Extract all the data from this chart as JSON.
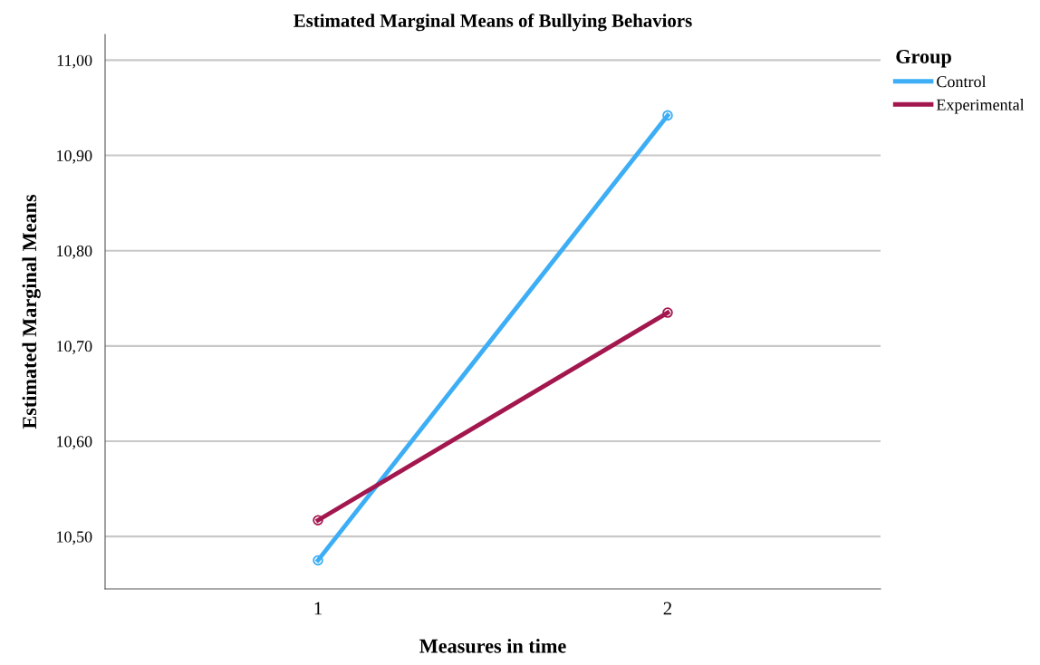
{
  "chart_data": {
    "type": "line",
    "title": "Estimated Marginal Means of Bullying Behaviors",
    "xlabel": "Measures in time",
    "ylabel": "Estimated Marginal Means",
    "legend_title": "Group",
    "categories": [
      "1",
      "2"
    ],
    "series": [
      {
        "name": "Control",
        "color": "#3daef5",
        "values": [
          10.475,
          10.942
        ]
      },
      {
        "name": "Experimental",
        "color": "#a3174f",
        "values": [
          10.517,
          10.735
        ]
      }
    ],
    "ylim": [
      10.445,
      11.027
    ],
    "yticks": [
      {
        "value": 10.5,
        "label": "10,50"
      },
      {
        "value": 10.6,
        "label": "10,60"
      },
      {
        "value": 10.7,
        "label": "10,70"
      },
      {
        "value": 10.8,
        "label": "10,80"
      },
      {
        "value": 10.9,
        "label": "10,90"
      },
      {
        "value": 11.0,
        "label": "11,00"
      }
    ],
    "grid": "y",
    "legend": "top right",
    "marker": "circle",
    "line_style": "solid"
  }
}
